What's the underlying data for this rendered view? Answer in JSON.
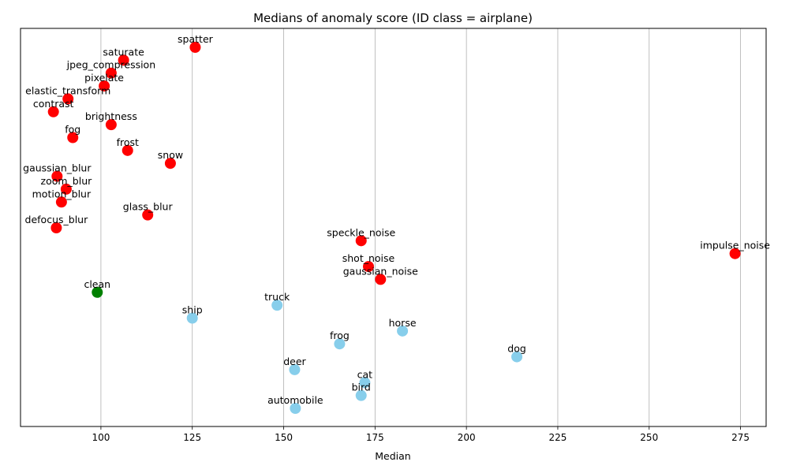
{
  "chart_data": {
    "type": "scatter",
    "title": "Medians of anomaly score (ID class = airplane)",
    "xlabel": "Median",
    "ylabel": "",
    "xlim": [
      78,
      282
    ],
    "xticks": [
      100,
      125,
      150,
      175,
      200,
      225,
      250,
      275
    ],
    "grid": "x",
    "colors": {
      "corruption": "#ff0000",
      "clean": "#008000",
      "ood_class": "#87ceeb"
    },
    "points": [
      {
        "label": "spatter",
        "x": 125.8,
        "group": "corruption"
      },
      {
        "label": "saturate",
        "x": 106.2,
        "group": "corruption"
      },
      {
        "label": "jpeg_compression",
        "x": 102.8,
        "group": "corruption"
      },
      {
        "label": "pixelate",
        "x": 100.9,
        "group": "corruption"
      },
      {
        "label": "elastic_transform",
        "x": 91.0,
        "group": "corruption"
      },
      {
        "label": "contrast",
        "x": 87.0,
        "group": "corruption"
      },
      {
        "label": "brightness",
        "x": 102.8,
        "group": "corruption"
      },
      {
        "label": "fog",
        "x": 92.3,
        "group": "corruption"
      },
      {
        "label": "frost",
        "x": 107.3,
        "group": "corruption"
      },
      {
        "label": "snow",
        "x": 119.0,
        "group": "corruption"
      },
      {
        "label": "gaussian_blur",
        "x": 88.0,
        "group": "corruption"
      },
      {
        "label": "zoom_blur",
        "x": 90.5,
        "group": "corruption"
      },
      {
        "label": "motion_blur",
        "x": 89.2,
        "group": "corruption"
      },
      {
        "label": "glass_blur",
        "x": 112.8,
        "group": "corruption"
      },
      {
        "label": "defocus_blur",
        "x": 87.8,
        "group": "corruption"
      },
      {
        "label": "speckle_noise",
        "x": 171.2,
        "group": "corruption"
      },
      {
        "label": "impulse_noise",
        "x": 273.5,
        "group": "corruption"
      },
      {
        "label": "shot_noise",
        "x": 173.2,
        "group": "corruption"
      },
      {
        "label": "gaussian_noise",
        "x": 176.5,
        "group": "corruption"
      },
      {
        "label": "clean",
        "x": 99.0,
        "group": "clean"
      },
      {
        "label": "truck",
        "x": 148.2,
        "group": "ood_class"
      },
      {
        "label": "ship",
        "x": 125.0,
        "group": "ood_class"
      },
      {
        "label": "horse",
        "x": 182.5,
        "group": "ood_class"
      },
      {
        "label": "frog",
        "x": 165.3,
        "group": "ood_class"
      },
      {
        "label": "dog",
        "x": 213.8,
        "group": "ood_class"
      },
      {
        "label": "deer",
        "x": 153.0,
        "group": "ood_class"
      },
      {
        "label": "cat",
        "x": 172.2,
        "group": "ood_class"
      },
      {
        "label": "bird",
        "x": 171.2,
        "group": "ood_class"
      },
      {
        "label": "automobile",
        "x": 153.2,
        "group": "ood_class"
      }
    ]
  }
}
